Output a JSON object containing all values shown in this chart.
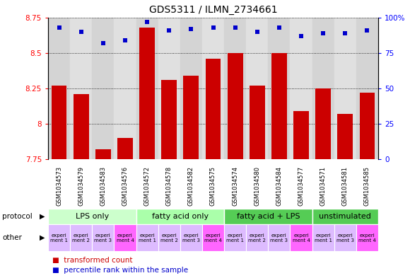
{
  "title": "GDS5311 / ILMN_2734661",
  "samples": [
    "GSM1034573",
    "GSM1034579",
    "GSM1034583",
    "GSM1034576",
    "GSM1034572",
    "GSM1034578",
    "GSM1034582",
    "GSM1034575",
    "GSM1034574",
    "GSM1034580",
    "GSM1034584",
    "GSM1034577",
    "GSM1034571",
    "GSM1034581",
    "GSM1034585"
  ],
  "bar_values": [
    8.27,
    8.21,
    7.82,
    7.9,
    8.68,
    8.31,
    8.34,
    8.46,
    8.5,
    8.27,
    8.5,
    8.09,
    8.25,
    8.07,
    8.22
  ],
  "dot_values": [
    93,
    90,
    82,
    84,
    97,
    91,
    92,
    93,
    93,
    90,
    93,
    87,
    89,
    89,
    91
  ],
  "ylim_left": [
    7.75,
    8.75
  ],
  "ylim_right": [
    0,
    100
  ],
  "yticks_left": [
    7.75,
    8.0,
    8.25,
    8.5,
    8.75
  ],
  "yticks_right": [
    0,
    25,
    50,
    75,
    100
  ],
  "ytick_labels_left": [
    "7.75",
    "8",
    "8.25",
    "8.5",
    "8.75"
  ],
  "ytick_labels_right": [
    "0",
    "25",
    "50",
    "75",
    "100%"
  ],
  "bar_color": "#cc0000",
  "dot_color": "#0000cc",
  "bar_bottom": 7.75,
  "protocol_groups": [
    {
      "label": "LPS only",
      "start": 0,
      "end": 4,
      "color": "#ccffcc"
    },
    {
      "label": "fatty acid only",
      "start": 4,
      "end": 8,
      "color": "#aaffaa"
    },
    {
      "label": "fatty acid + LPS",
      "start": 8,
      "end": 12,
      "color": "#55cc55"
    },
    {
      "label": "unstimulated",
      "start": 12,
      "end": 15,
      "color": "#55cc55"
    }
  ],
  "experiment_labels": [
    "experi\nment 1",
    "experi\nment 2",
    "experi\nment 3",
    "experi\nment 4",
    "experi\nment 1",
    "experi\nment 2",
    "experi\nment 3",
    "experi\nment 4",
    "experi\nment 1",
    "experi\nment 2",
    "experi\nment 3",
    "experi\nment 4",
    "experi\nment 1",
    "experi\nment 3",
    "experi\nment 4"
  ],
  "experiment_colors_light": "#ddbbff",
  "experiment_colors_pink": "#ff66ff",
  "experiment_color_map": [
    0,
    0,
    0,
    1,
    0,
    0,
    0,
    1,
    0,
    0,
    0,
    1,
    0,
    0,
    1
  ],
  "protocol_label": "protocol",
  "other_label": "other",
  "legend_bar_label": "transformed count",
  "legend_dot_label": "percentile rank within the sample",
  "background_color": "#ffffff",
  "plot_bg": "#ffffff",
  "column_bg_even": "#d4d4d4",
  "column_bg_odd": "#e0e0e0",
  "title_fontsize": 10,
  "tick_fontsize": 7.5,
  "sample_fontsize": 6,
  "proto_fontsize": 8,
  "other_fontsize": 5
}
